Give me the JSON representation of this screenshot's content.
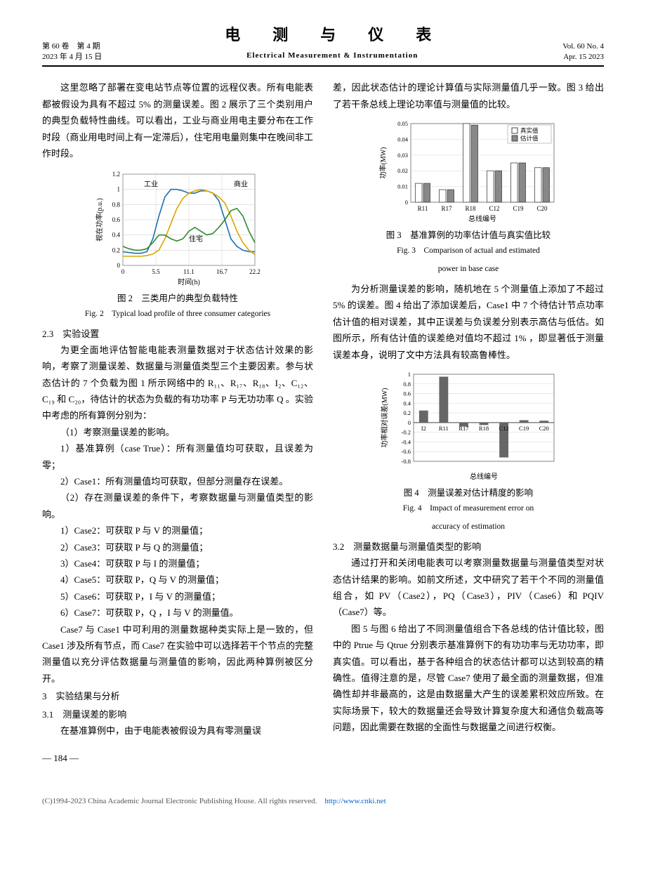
{
  "header": {
    "volume_issue": "第 60 卷　第 4 期",
    "date_cn": "2023 年 4 月 15 日",
    "title_cn": "电　测　与　仪　表",
    "title_en": "Electrical Measurement & Instrumentation",
    "vol_en": "Vol. 60  No. 4",
    "date_en": "Apr. 15  2023"
  },
  "left": {
    "para1": "这里忽略了部署在变电站节点等位置的远程仪表。所有电能表都被假设为具有不超过 5% 的测量误差。图 2 展示了三个类别用户的典型负载特性曲线。可以看出，工业与商业用电主要分布在工作时段（商业用电时间上有一定滞后），住宅用电量则集中在晚间非工作时段。",
    "fig2_caption_cn": "图 2　三类用户的典型负载特性",
    "fig2_caption_en": "Fig. 2　Typical load profile of three consumer categories",
    "sec23": "2.3　实验设置",
    "para2": "为更全面地评估智能电能表测量数据对于状态估计效果的影响，考察了测量误差、数据量与测量值类型三个主要因素。参与状态估计的 7 个负载为图 1 所示网络中的 R₁₁、R₁₇、R₁₈、I₂、C₁₂、C₁₉ 和 C₂₀，待估计的状态为负载的有功功率 P 与无功功率 Q 。实验中考虑的所有算例分别为：",
    "item1": "（1）考察测量误差的影响。",
    "item1a": "1）基准算例（case True）：所有测量值均可获取，且误差为零；",
    "item1b": "2）Case1：所有测量值均可获取，但部分测量存在误差。",
    "item2": "（2）存在测量误差的条件下，考察数据量与测量值类型的影响。",
    "item2a": "1）Case2：可获取 P 与 V 的测量值；",
    "item2b": "2）Case3：可获取 P 与 Q 的测量值；",
    "item2c": "3）Case4：可获取 P 与 I 的测量值；",
    "item2d": "4）Case5：可获取 P，Q 与 V 的测量值；",
    "item2e": "5）Case6：可获取 P，I 与 V 的测量值；",
    "item2f": "6）Case7：可获取 P，Q ，I 与 V 的测量值。",
    "para3": "Case7 与 Case1 中可利用的测量数据种类实际上是一致的，但 Case1 涉及所有节点，而 Case7 在实验中可以选择若干个节点的完整测量值以充分评估数据量与测量值的影响，因此两种算例被区分开。",
    "sec3": "3　实验结果与分析",
    "sec31": "3.1　测量误差的影响",
    "para4": "在基准算例中，由于电能表被假设为具有零测量误"
  },
  "right": {
    "para1": "差，因此状态估计的理论计算值与实际测量值几乎一致。图 3 给出了若干条总线上理论功率值与测量值的比较。",
    "fig3_caption_cn": "图 3　基准算例的功率估计值与真实值比较",
    "fig3_caption_en1": "Fig. 3　Comparison of actual and estimated",
    "fig3_caption_en2": "power in base case",
    "para2": "为分析测量误差的影响，随机地在 5 个测量值上添加了不超过 5% 的误差。图 4 给出了添加误差后，Case1 中 7 个待估计节点功率估计值的相对误差，其中正误差与负误差分别表示高估与低估。如图所示，所有估计值的误差绝对值均不超过 1% ，即显著低于测量误差本身，说明了文中方法具有较高鲁棒性。",
    "fig4_caption_cn": "图 4　测量误差对估计精度的影响",
    "fig4_caption_en1": "Fig. 4　Impact of measurement error on",
    "fig4_caption_en2": "accuracy of estimation",
    "sec32": "3.2　测量数据量与测量值类型的影响",
    "para3": "通过打开和关闭电能表可以考察测量数据量与测量值类型对状态估计结果的影响。如前文所述，文中研究了若干个不同的测量值组合，如 PV（Case2），PQ（Case3），PIV（Case6）和 PQIV（Case7）等。",
    "para4": "图 5 与图 6 给出了不同测量值组合下各总线的估计值比较，图中的 Ptrue 与 Qtrue 分别表示基准算例下的有功功率与无功功率，即真实值。可以看出，基于各种组合的状态估计都可以达到较高的精确性。值得注意的是，尽管 Case7 使用了最全面的测量数据，但准确性却并非最高的，这是由数据量大产生的误差累积效应所致。在实际场景下，较大的数据量还会导致计算复杂度大和通信负载高等问题，因此需要在数据的全面性与数据量之间进行权衡。"
  },
  "fig2": {
    "type": "line",
    "xlabel": "时间(h)",
    "ylabel": "视在功率(p.u.)",
    "xticks": [
      0,
      5.5,
      11.1,
      16.7,
      22.2
    ],
    "yticks": [
      0,
      0.2,
      0.4,
      0.6,
      0.8,
      1,
      1.2
    ],
    "ylim": [
      0,
      1.2
    ],
    "series": [
      {
        "name": "工业",
        "color": "#1f6fb0",
        "data": [
          0.18,
          0.17,
          0.16,
          0.16,
          0.18,
          0.35,
          0.65,
          0.9,
          1.0,
          1.0,
          0.98,
          0.95,
          0.95,
          0.98,
          0.98,
          0.95,
          0.85,
          0.6,
          0.35,
          0.25,
          0.2,
          0.18,
          0.18
        ]
      },
      {
        "name": "商业",
        "color": "#d9a600",
        "data": [
          0.12,
          0.12,
          0.12,
          0.12,
          0.13,
          0.15,
          0.2,
          0.35,
          0.55,
          0.75,
          0.88,
          0.95,
          0.98,
          1.0,
          0.98,
          0.95,
          0.9,
          0.82,
          0.65,
          0.45,
          0.3,
          0.2,
          0.14
        ]
      },
      {
        "name": "住宅",
        "color": "#2e8b2e",
        "data": [
          0.25,
          0.22,
          0.2,
          0.2,
          0.22,
          0.3,
          0.4,
          0.4,
          0.35,
          0.32,
          0.35,
          0.45,
          0.5,
          0.45,
          0.4,
          0.42,
          0.5,
          0.6,
          0.72,
          0.75,
          0.65,
          0.45,
          0.3
        ]
      }
    ],
    "legend_labels": {
      "ind": "工业",
      "com": "商业",
      "res": "住宅"
    },
    "grid_color": "#bbbbbb",
    "bg": "#ffffff"
  },
  "fig3": {
    "type": "bar",
    "xlabel": "总线编号",
    "ylabel": "功率(MW)",
    "categories": [
      "R11",
      "R17",
      "R18",
      "C12",
      "C19",
      "C20"
    ],
    "yticks": [
      0,
      0.01,
      0.02,
      0.03,
      0.04,
      0.05
    ],
    "ylim": [
      0,
      0.05
    ],
    "series": [
      {
        "name": "真实值",
        "color": "#ffffff",
        "border": "#444",
        "values": [
          0.012,
          0.008,
          0.05,
          0.02,
          0.025,
          0.022
        ]
      },
      {
        "name": "估计值",
        "color": "#888888",
        "border": "#444",
        "values": [
          0.012,
          0.008,
          0.049,
          0.02,
          0.025,
          0.022
        ]
      }
    ],
    "legend": {
      "true": "真实值",
      "est": "估计值"
    },
    "grid_color": "#cccccc"
  },
  "fig4": {
    "type": "bar",
    "xlabel": "总线编号",
    "ylabel": "功率相对误差(MW)",
    "categories": [
      "I2",
      "R11",
      "R17",
      "R18",
      "C12",
      "C19",
      "C20"
    ],
    "yticks": [
      -0.8,
      -0.6,
      -0.4,
      -0.2,
      0,
      0.2,
      0.4,
      0.6,
      0.8,
      1
    ],
    "ylim": [
      -0.8,
      1.0
    ],
    "values": [
      0.25,
      0.95,
      -0.08,
      -0.05,
      -0.72,
      0.05,
      0.04
    ],
    "bar_color": "#666666",
    "grid_color": "#cccccc"
  },
  "page_num": "— 184 —",
  "footer": {
    "text": "(C)1994-2023 China Academic Journal Electronic Publishing House. All rights reserved.",
    "url": "http://www.cnki.net"
  }
}
